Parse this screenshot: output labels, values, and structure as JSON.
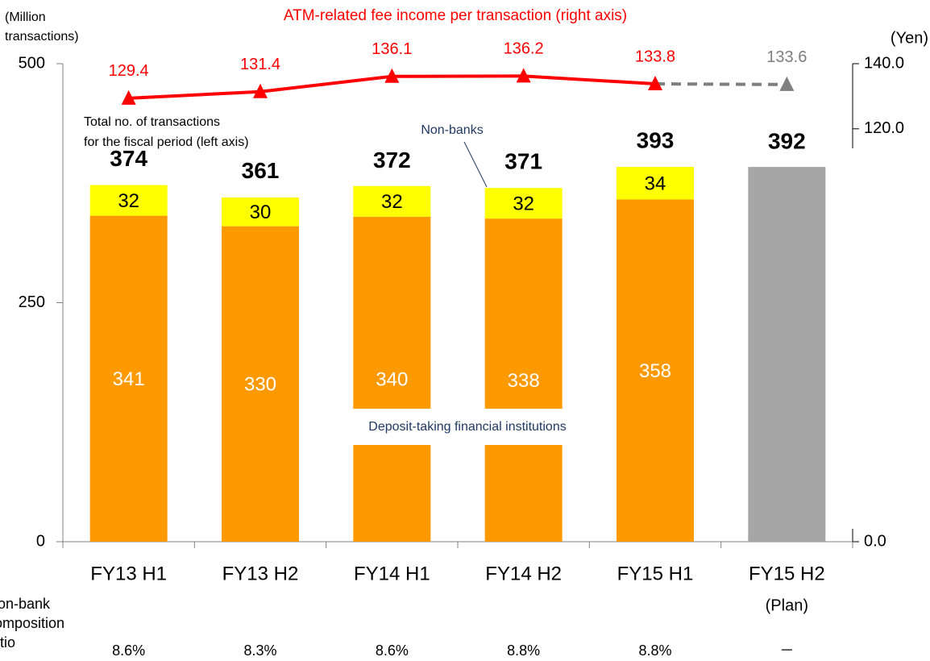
{
  "chart_data": {
    "type": "bar",
    "categories": [
      "FY13 H1",
      "FY13 H2",
      "FY14 H1",
      "FY14 H2",
      "FY15 H1",
      "FY15 H2"
    ],
    "plan": {
      "label": "(Plan)",
      "index": 5
    },
    "ylabel": [
      "(Million",
      "transactions)"
    ],
    "y2label": "(Yen)",
    "ylim": [
      0,
      500
    ],
    "yticks": [
      0,
      250,
      500
    ],
    "y2lim": [
      0,
      140
    ],
    "y2break": [
      0,
      115
    ],
    "y2ticks": [
      {
        "value": 0,
        "label": "0.0"
      },
      {
        "value": 120,
        "label": "120.0"
      },
      {
        "value": 140,
        "label": "140.0"
      }
    ],
    "series": [
      {
        "name": "Deposit-taking financial institutions",
        "color": "#ff9900",
        "label_color": "#ffffff",
        "values": [
          341,
          330,
          340,
          338,
          358,
          null
        ]
      },
      {
        "name": "Non-banks",
        "color": "#ffff00",
        "label_color": "#000000",
        "values": [
          32,
          30,
          32,
          32,
          34,
          null
        ]
      },
      {
        "name": "ATM-related fee income per transaction (right axis)",
        "type": "line",
        "axis": "y2",
        "color": "#ff0000",
        "plan_color": "#7f7f7f",
        "values": [
          129.4,
          131.4,
          136.1,
          136.2,
          133.8,
          133.6
        ]
      }
    ],
    "totals": {
      "name": [
        "Total no. of transactions",
        "for the fiscal period (left axis)"
      ],
      "values": [
        374,
        361,
        372,
        371,
        393,
        392
      ],
      "plan_color": "#a6a6a6"
    },
    "ratio": {
      "label": [
        "Non-bank",
        "composition",
        "ratio"
      ],
      "values": [
        8.6,
        8.3,
        8.6,
        8.8,
        8.8,
        null
      ],
      "value_labels": [
        "8.6%",
        "8.3%",
        "8.6%",
        "8.8%",
        "8.8%",
        "－"
      ]
    }
  }
}
